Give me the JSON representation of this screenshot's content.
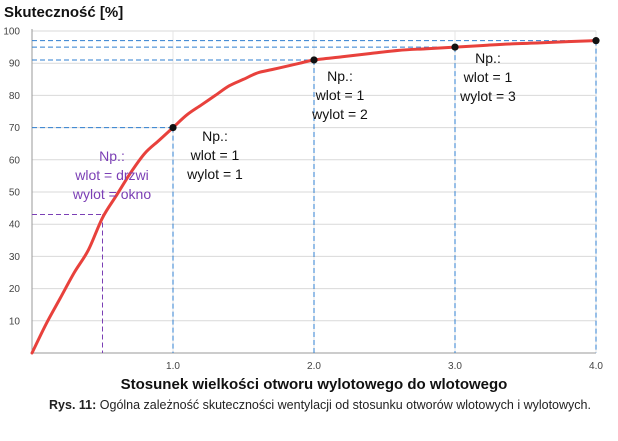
{
  "chart_data": {
    "type": "line",
    "ylabel": "Skuteczność [%]",
    "xlabel": "Stosunek wielkości otworu wylotowego do wlotowego",
    "xlim": [
      0,
      4
    ],
    "ylim": [
      0,
      100
    ],
    "x_ticks": [
      1,
      2,
      3,
      4
    ],
    "x_tick_labels": [
      "1.0",
      "2.0",
      "3.0",
      "4.0"
    ],
    "y_ticks": [
      10,
      20,
      30,
      40,
      50,
      60,
      70,
      80,
      90,
      100
    ],
    "y_tick_labels": [
      "10",
      "20",
      "30",
      "40",
      "50",
      "60",
      "70",
      "80",
      "90",
      "100"
    ],
    "grid": true,
    "series": [
      {
        "color": "#e8413c",
        "x": [
          0,
          0.1,
          0.2,
          0.3,
          0.4,
          0.5,
          0.6,
          0.7,
          0.8,
          0.9,
          1.0,
          1.1,
          1.2,
          1.3,
          1.4,
          1.5,
          1.6,
          1.7,
          1.8,
          1.9,
          2.0,
          2.2,
          2.4,
          2.6,
          2.8,
          3.0,
          3.2,
          3.4,
          3.6,
          3.8,
          4.0
        ],
        "y": [
          0,
          9,
          17,
          25,
          32,
          42,
          49,
          56,
          62,
          66,
          70,
          74,
          77,
          80,
          83,
          85,
          87,
          88,
          89,
          90,
          91,
          92,
          93,
          94,
          94.5,
          95,
          95.5,
          96,
          96.3,
          96.7,
          97
        ]
      }
    ],
    "markers": [
      {
        "x": 1.0,
        "y": 70
      },
      {
        "x": 2.0,
        "y": 91
      },
      {
        "x": 3.0,
        "y": 95
      },
      {
        "x": 4.0,
        "y": 97
      }
    ],
    "reference_lines": [
      {
        "x": 0.5,
        "y": 43,
        "color": "#7b3fb5"
      },
      {
        "x": 1.0,
        "y": 70,
        "color": "#2f7fd0"
      },
      {
        "x": 2.0,
        "y": 91,
        "color": "#2f7fd0"
      },
      {
        "x": 3.0,
        "y": 95,
        "color": "#2f7fd0"
      },
      {
        "x": 4.0,
        "y": 97,
        "color": "#2f7fd0"
      }
    ],
    "annotations": [
      {
        "lines": [
          "Np.:",
          "wlot = drzwi",
          "wylot = okno"
        ],
        "color": "#7b3fb5"
      },
      {
        "lines": [
          "Np.:",
          "wlot = 1",
          "wylot = 1"
        ],
        "color": "#111111"
      },
      {
        "lines": [
          "Np.:",
          "wlot = 1",
          "wylot = 2"
        ],
        "color": "#111111"
      },
      {
        "lines": [
          "Np.:",
          "wlot = 1",
          "wylot = 3"
        ],
        "color": "#111111"
      }
    ]
  },
  "caption": {
    "label": "Rys. 11:",
    "text": "Ogólna zależność skuteczności wentylacji od stosunku otworów wlotowych i wylotowych."
  }
}
